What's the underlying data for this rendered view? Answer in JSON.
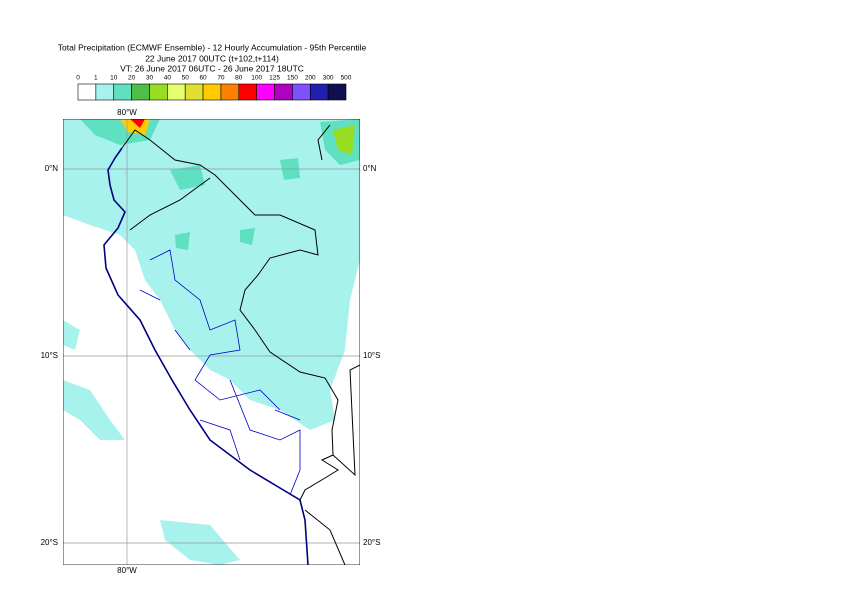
{
  "header": {
    "title": "Total Precipitation (ECMWF Ensemble) - 12 Hourly Accumulation - 95th Percentile",
    "base": "22 June 2017 00UTC (t+102,t+114)",
    "valid": "VT: 26 June 2017 06UTC - 26 June 2017 18UTC"
  },
  "legend": {
    "thresholds": [
      0,
      1,
      10,
      20,
      30,
      40,
      50,
      60,
      70,
      80,
      100,
      125,
      150,
      200,
      300,
      500
    ],
    "colors": [
      "#ffffff",
      "#a8f2ee",
      "#5fe0c0",
      "#4fbf4a",
      "#99dd22",
      "#e4ff70",
      "#e0e030",
      "#ffcc00",
      "#ff8000",
      "#ff0000",
      "#ff00ff",
      "#b000c0",
      "#8050ff",
      "#2020b0",
      "#101050"
    ]
  },
  "map": {
    "lon_labels": [
      "80°W",
      "80°W"
    ],
    "lat_labels": [
      "0°N",
      "10°S",
      "20°S",
      "0°N",
      "10°S",
      "20°S"
    ]
  }
}
